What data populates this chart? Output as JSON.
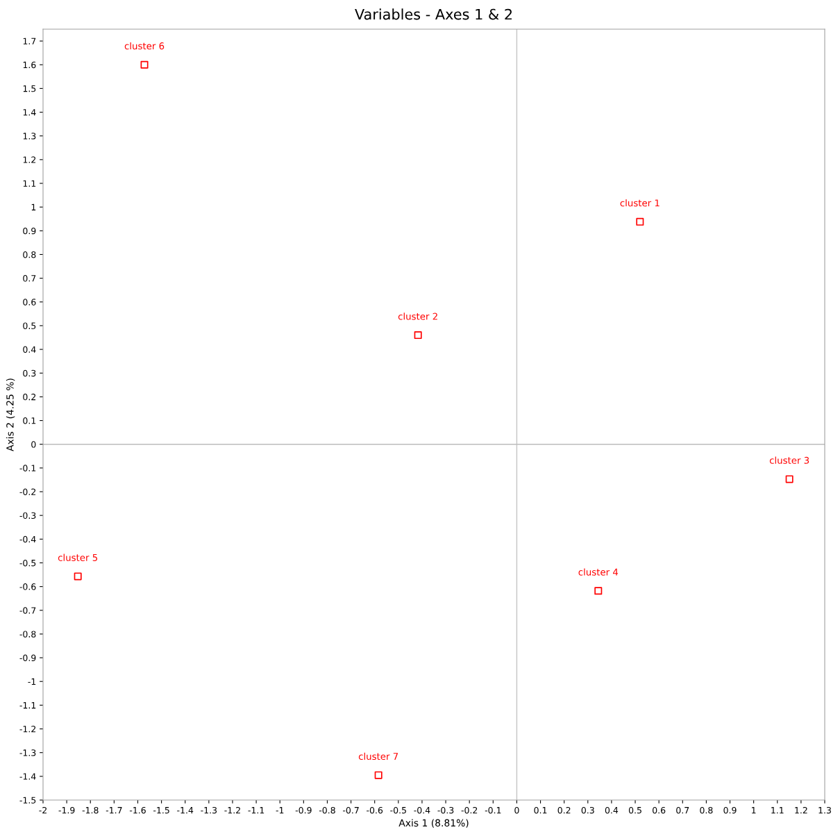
{
  "chart_data": {
    "type": "scatter",
    "title": "Variables - Axes 1 & 2",
    "xlabel": "Axis 1 (8.81%)",
    "ylabel": "Axis 2 (4.25 %)",
    "x": [
      0.52,
      -0.417,
      1.151,
      0.344,
      -1.853,
      -1.572,
      -0.584
    ],
    "series": [
      {
        "color": "#ff0000",
        "values": [
          0.938,
          0.46,
          -0.147,
          -0.618,
          -0.557,
          1.6,
          -1.395
        ]
      }
    ],
    "marker": "square",
    "grid": false,
    "legend": false,
    "annotations": [
      {
        "text": "cluster 1",
        "x": 0.52,
        "y": 0.938
      },
      {
        "text": "cluster 2",
        "x": -0.417,
        "y": 0.46
      },
      {
        "text": "cluster 3",
        "x": 1.151,
        "y": -0.147
      },
      {
        "text": "cluster 4",
        "x": 0.344,
        "y": -0.618
      },
      {
        "text": "cluster 5",
        "x": -1.853,
        "y": -0.557
      },
      {
        "text": "cluster 6",
        "x": -1.572,
        "y": 1.6
      },
      {
        "text": "cluster 7",
        "x": -0.584,
        "y": -1.395
      }
    ],
    "ref_lines": [
      {
        "axis": "x",
        "value": 0,
        "color": "#c4c4c4"
      },
      {
        "axis": "y",
        "value": 0,
        "color": "#bcbcbc"
      }
    ],
    "xlim": [
      -2,
      1.3
    ],
    "ylim": [
      -1.5,
      1.75
    ],
    "xticks": [
      -2,
      -1.9,
      -1.8,
      -1.7,
      -1.6,
      -1.5,
      -1.4,
      -1.3,
      -1.2,
      -1.1,
      -1,
      -0.9,
      -0.8,
      -0.7,
      -0.6,
      -0.5,
      -0.4,
      -0.3,
      -0.2,
      -0.1,
      0,
      0.1,
      0.2,
      0.3,
      0.4,
      0.5,
      0.6,
      0.7,
      0.8,
      0.9,
      1,
      1.1,
      1.2,
      1.3
    ],
    "yticks": [
      -1.5,
      -1.4,
      -1.3,
      -1.2,
      -1.1,
      -1,
      -0.9,
      -0.8,
      -0.7,
      -0.6,
      -0.5,
      -0.4,
      -0.3,
      -0.2,
      -0.1,
      0,
      0.1,
      0.2,
      0.3,
      0.4,
      0.5,
      0.6,
      0.7,
      0.8,
      0.9,
      1,
      1.1,
      1.2,
      1.3,
      1.4,
      1.5,
      1.6,
      1.7
    ]
  }
}
